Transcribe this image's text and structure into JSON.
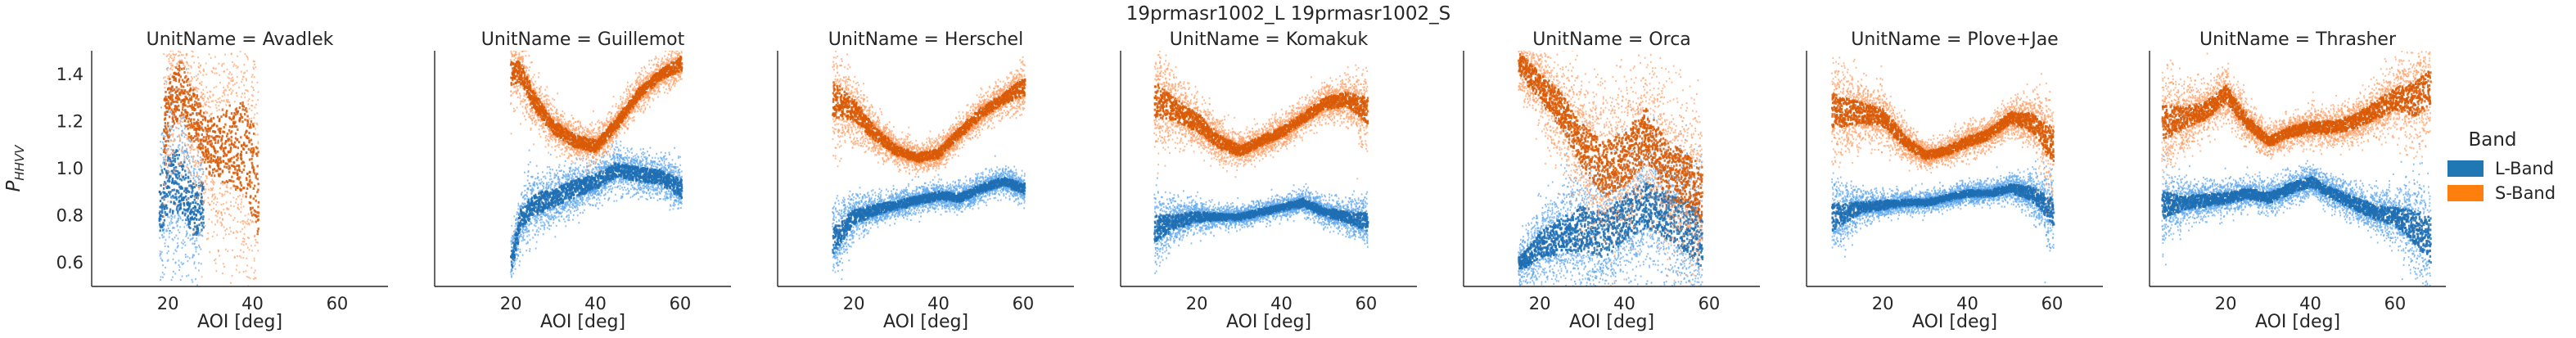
{
  "figure": {
    "suptitle": "19prmasr1002_L 19prmasr1002_S"
  },
  "legend": {
    "title": "Band",
    "placement": "right",
    "items": [
      {
        "label": "L-Band",
        "color": "#1f77b4"
      },
      {
        "label": "S-Band",
        "color": "#ff7f0e"
      }
    ]
  },
  "colors": {
    "L-Band": {
      "dark": "#1f6fb4",
      "light": "#5fa8ee"
    },
    "S-Band": {
      "dark": "#d95a06",
      "light": "#ffa066"
    }
  },
  "chart_data": {
    "type": "histogram2d",
    "facet_var": "UnitName",
    "xlabel": "AOI [deg]",
    "ylabel": "P_{HH/VV}",
    "ylabel_main": "P",
    "ylabel_sub": "HHVV",
    "xlim": [
      2,
      72
    ],
    "ylim": [
      0.5,
      1.5
    ],
    "xticks": [
      20,
      40,
      60
    ],
    "yticks": [
      0.6,
      0.8,
      1.0,
      1.2,
      1.4
    ],
    "ytick_labels": [
      "0.6",
      "0.8",
      "1.0",
      "1.2",
      "1.4"
    ],
    "grid": false,
    "facets": [
      {
        "title": "UnitName = Avadlek",
        "series": [
          {
            "name": "L-Band",
            "x": [
              18,
              20,
              22,
              24,
              26,
              28
            ],
            "y": [
              0.85,
              0.95,
              0.95,
              0.9,
              0.82,
              0.85
            ],
            "spread": [
              0.35,
              0.35,
              0.35,
              0.3,
              0.3,
              0.25
            ]
          },
          {
            "name": "S-Band",
            "x": [
              19,
              21,
              23,
              25,
              27,
              29,
              38,
              39,
              40,
              41
            ],
            "y": [
              1.2,
              1.3,
              1.35,
              1.25,
              1.2,
              1.1,
              1.1,
              1.0,
              1.0,
              0.9
            ],
            "spread": [
              0.35,
              0.3,
              0.3,
              0.3,
              0.3,
              0.3,
              0.55,
              0.55,
              0.55,
              0.5
            ]
          }
        ]
      },
      {
        "title": "UnitName = Guillemot",
        "series": [
          {
            "name": "L-Band",
            "x": [
              20,
              22,
              25,
              30,
              35,
              40,
              45,
              50,
              55,
              60
            ],
            "y": [
              0.62,
              0.78,
              0.85,
              0.88,
              0.92,
              0.95,
              1.0,
              0.98,
              0.97,
              0.92
            ],
            "spread": [
              0.1,
              0.12,
              0.12,
              0.1,
              0.1,
              0.08,
              0.08,
              0.08,
              0.08,
              0.1
            ]
          },
          {
            "name": "S-Band",
            "x": [
              20,
              22,
              25,
              30,
              35,
              40,
              45,
              50,
              55,
              60
            ],
            "y": [
              1.4,
              1.42,
              1.3,
              1.18,
              1.12,
              1.1,
              1.2,
              1.32,
              1.4,
              1.45
            ],
            "spread": [
              0.15,
              0.12,
              0.1,
              0.08,
              0.07,
              0.07,
              0.07,
              0.07,
              0.06,
              0.08
            ]
          }
        ]
      },
      {
        "title": "UnitName = Herschel",
        "series": [
          {
            "name": "L-Band",
            "x": [
              15,
              20,
              25,
              30,
              35,
              40,
              45,
              50,
              55,
              60
            ],
            "y": [
              0.7,
              0.8,
              0.83,
              0.85,
              0.87,
              0.89,
              0.88,
              0.92,
              0.95,
              0.92
            ],
            "spread": [
              0.15,
              0.08,
              0.06,
              0.05,
              0.05,
              0.05,
              0.05,
              0.05,
              0.05,
              0.06
            ]
          },
          {
            "name": "S-Band",
            "x": [
              15,
              20,
              25,
              30,
              35,
              40,
              45,
              50,
              55,
              60
            ],
            "y": [
              1.3,
              1.25,
              1.15,
              1.08,
              1.05,
              1.07,
              1.16,
              1.24,
              1.3,
              1.35
            ],
            "spread": [
              0.2,
              0.12,
              0.08,
              0.06,
              0.05,
              0.06,
              0.06,
              0.06,
              0.06,
              0.1
            ]
          }
        ]
      },
      {
        "title": "UnitName = Komakuk",
        "series": [
          {
            "name": "L-Band",
            "x": [
              10,
              15,
              20,
              25,
              30,
              35,
              40,
              45,
              50,
              55,
              60
            ],
            "y": [
              0.75,
              0.78,
              0.8,
              0.8,
              0.8,
              0.82,
              0.84,
              0.86,
              0.82,
              0.8,
              0.78
            ],
            "spread": [
              0.15,
              0.08,
              0.06,
              0.04,
              0.04,
              0.04,
              0.04,
              0.05,
              0.05,
              0.06,
              0.1
            ]
          },
          {
            "name": "S-Band",
            "x": [
              10,
              15,
              20,
              25,
              30,
              35,
              40,
              45,
              50,
              55,
              60
            ],
            "y": [
              1.3,
              1.25,
              1.2,
              1.12,
              1.08,
              1.12,
              1.16,
              1.22,
              1.28,
              1.3,
              1.25
            ],
            "spread": [
              0.2,
              0.12,
              0.1,
              0.08,
              0.06,
              0.06,
              0.06,
              0.06,
              0.07,
              0.08,
              0.15
            ]
          }
        ]
      },
      {
        "title": "UnitName = Orca",
        "series": [
          {
            "name": "L-Band",
            "x": [
              15,
              20,
              25,
              30,
              35,
              40,
              45,
              50,
              55,
              58
            ],
            "y": [
              0.6,
              0.68,
              0.72,
              0.75,
              0.72,
              0.8,
              0.85,
              0.8,
              0.75,
              0.7
            ],
            "spread": [
              0.08,
              0.15,
              0.2,
              0.25,
              0.25,
              0.25,
              0.25,
              0.25,
              0.3,
              0.3
            ]
          },
          {
            "name": "S-Band",
            "x": [
              15,
              20,
              25,
              30,
              35,
              40,
              45,
              50,
              55,
              58
            ],
            "y": [
              1.45,
              1.35,
              1.25,
              1.1,
              1.0,
              1.05,
              1.15,
              1.0,
              0.95,
              0.9
            ],
            "spread": [
              0.12,
              0.15,
              0.2,
              0.25,
              0.3,
              0.3,
              0.3,
              0.3,
              0.3,
              0.3
            ]
          }
        ]
      },
      {
        "title": "UnitName = Plove+Jae",
        "series": [
          {
            "name": "L-Band",
            "x": [
              8,
              15,
              20,
              25,
              30,
              35,
              40,
              45,
              50,
              55,
              60
            ],
            "y": [
              0.8,
              0.84,
              0.85,
              0.86,
              0.86,
              0.88,
              0.9,
              0.9,
              0.92,
              0.9,
              0.82
            ],
            "spread": [
              0.15,
              0.06,
              0.05,
              0.04,
              0.04,
              0.04,
              0.04,
              0.04,
              0.05,
              0.08,
              0.15
            ]
          },
          {
            "name": "S-Band",
            "x": [
              8,
              15,
              20,
              25,
              30,
              35,
              40,
              45,
              50,
              55,
              60
            ],
            "y": [
              1.25,
              1.24,
              1.22,
              1.12,
              1.06,
              1.08,
              1.12,
              1.15,
              1.22,
              1.2,
              1.1
            ],
            "spread": [
              0.2,
              0.12,
              0.1,
              0.07,
              0.05,
              0.05,
              0.06,
              0.06,
              0.07,
              0.1,
              0.2
            ]
          }
        ]
      },
      {
        "title": "UnitName = Thrasher",
        "series": [
          {
            "name": "L-Band",
            "x": [
              5,
              10,
              15,
              20,
              25,
              30,
              35,
              40,
              45,
              50,
              55,
              60,
              65,
              68
            ],
            "y": [
              0.85,
              0.86,
              0.87,
              0.88,
              0.9,
              0.88,
              0.92,
              0.95,
              0.9,
              0.86,
              0.82,
              0.8,
              0.75,
              0.7
            ],
            "spread": [
              0.15,
              0.08,
              0.07,
              0.06,
              0.06,
              0.06,
              0.06,
              0.06,
              0.06,
              0.07,
              0.08,
              0.1,
              0.2,
              0.25
            ]
          },
          {
            "name": "S-Band",
            "x": [
              5,
              10,
              15,
              20,
              25,
              30,
              35,
              40,
              45,
              50,
              55,
              60,
              65,
              68
            ],
            "y": [
              1.2,
              1.22,
              1.25,
              1.32,
              1.2,
              1.12,
              1.16,
              1.18,
              1.18,
              1.2,
              1.25,
              1.3,
              1.3,
              1.35
            ],
            "spread": [
              0.2,
              0.12,
              0.1,
              0.1,
              0.08,
              0.06,
              0.06,
              0.07,
              0.07,
              0.08,
              0.1,
              0.12,
              0.2,
              0.2
            ]
          }
        ]
      }
    ]
  }
}
